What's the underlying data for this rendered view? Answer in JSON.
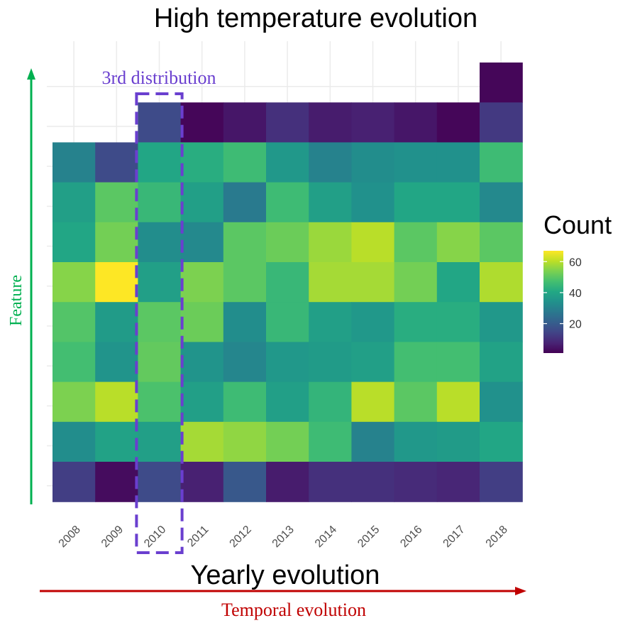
{
  "chart_data": {
    "type": "heatmap",
    "title": "High temperature evolution",
    "xlabel": "Yearly evolution",
    "ylabel": "",
    "categories": [
      "2008",
      "2009",
      "2010",
      "2011",
      "2012",
      "2013",
      "2014",
      "2015",
      "2016",
      "2017",
      "2018"
    ],
    "rows_top_to_bottom": [
      [
        null,
        null,
        null,
        null,
        null,
        null,
        null,
        null,
        null,
        null,
        2
      ],
      [
        null,
        null,
        16,
        2,
        5,
        10,
        6,
        7,
        5,
        2,
        12
      ],
      [
        30,
        16,
        40,
        42,
        46,
        36,
        30,
        33,
        34,
        34,
        46
      ],
      [
        38,
        50,
        45,
        38,
        28,
        46,
        38,
        34,
        40,
        40,
        32
      ],
      [
        40,
        53,
        33,
        32,
        50,
        52,
        57,
        60,
        50,
        55,
        50
      ],
      [
        55,
        67,
        38,
        54,
        50,
        45,
        58,
        58,
        53,
        40,
        59
      ],
      [
        49,
        37,
        50,
        52,
        33,
        45,
        38,
        36,
        42,
        42,
        36
      ],
      [
        47,
        35,
        51,
        35,
        31,
        36,
        37,
        38,
        47,
        47,
        39
      ],
      [
        54,
        60,
        48,
        38,
        46,
        38,
        44,
        60,
        50,
        60,
        34
      ],
      [
        33,
        39,
        38,
        58,
        56,
        53,
        46,
        30,
        36,
        37,
        40
      ],
      [
        13,
        3,
        16,
        7,
        19,
        6,
        10,
        10,
        9,
        8,
        13
      ]
    ],
    "legend": {
      "title": "Count",
      "ticks": [
        "60",
        "40",
        "20"
      ],
      "min": 1,
      "max": 67,
      "colormap": "viridis",
      "placement": "right"
    },
    "grid": true
  },
  "annotations": {
    "feature_label": "Feature",
    "feature_color": "#00b050",
    "temporal_label": "Temporal evolution",
    "temporal_color": "#c00000",
    "highlight_label": "3rd distribution",
    "highlight_color": "#6a3fcf",
    "highlight_category": "2010"
  }
}
